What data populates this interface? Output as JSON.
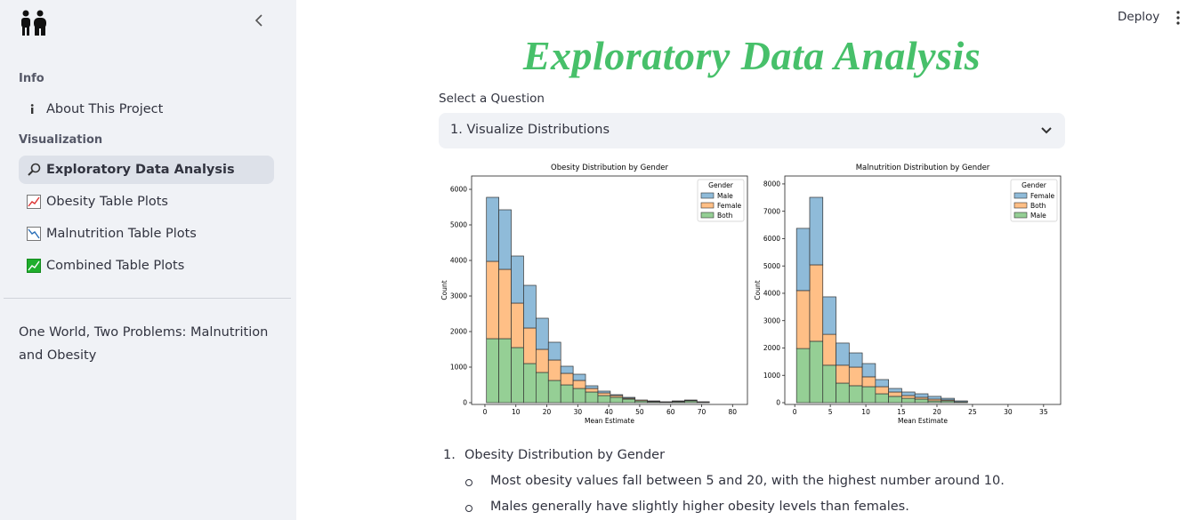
{
  "header": {
    "deploy": "Deploy"
  },
  "sidebar": {
    "info_heading": "Info",
    "about": "About This Project",
    "visualization_heading": "Visualization",
    "nav": [
      "Exploratory Data Analysis",
      "Obesity Table Plots",
      "Malnutrition Table Plots",
      "Combined Table Plots"
    ],
    "footer": "One World, Two Problems: Malnutrition and Obesity"
  },
  "main": {
    "title": "Exploratory Data Analysis",
    "select_label": "Select a Question",
    "select_value": "1. Visualize Distributions",
    "list": {
      "number": "1.",
      "heading": "Obesity Distribution by Gender",
      "bullets": [
        "Most obesity values fall between 5 and 20, with the highest number around 10.",
        "Males generally have slightly higher obesity levels than females."
      ]
    }
  },
  "chart_data": [
    {
      "type": "stacked-histogram",
      "title": "Obesity Distribution by Gender",
      "x_label": "Mean Estimate",
      "y_label": "Count",
      "legend_title": "Gender",
      "legend": "upper right",
      "bins": [
        0.5,
        4.5,
        8.5,
        12.5,
        16.5,
        20.5,
        24.5,
        28.5,
        32.5,
        36.5,
        40.5,
        44.5,
        48.5,
        52.5,
        56.5,
        60.5,
        64.5,
        68.5,
        72.5
      ],
      "series": [
        {
          "name": "Male",
          "color": "#8fbbd9",
          "values": [
            1800,
            1675,
            1325,
            1200,
            875,
            500,
            200,
            175,
            75,
            50,
            25,
            25,
            0,
            10,
            5,
            10,
            10,
            5
          ]
        },
        {
          "name": "Female",
          "color": "#ffbf86",
          "values": [
            2175,
            1950,
            1250,
            1000,
            650,
            575,
            325,
            225,
            100,
            75,
            50,
            25,
            25,
            15,
            10,
            15,
            15,
            10
          ]
        },
        {
          "name": "Both",
          "color": "#95cf95",
          "values": [
            1800,
            1800,
            1550,
            1100,
            850,
            625,
            500,
            400,
            300,
            200,
            150,
            100,
            50,
            25,
            10,
            25,
            50,
            10
          ]
        }
      ],
      "xlim": [
        -4.3,
        84.8
      ],
      "ylim": [
        -50,
        6375
      ],
      "xticks": [
        0,
        10,
        20,
        30,
        40,
        50,
        60,
        70,
        80
      ],
      "yticks": [
        0,
        1000,
        2000,
        3000,
        4000,
        5000,
        6000
      ]
    },
    {
      "type": "stacked-histogram",
      "title": "Malnutrition Distribution by Gender",
      "x_label": "Mean Estimate",
      "y_label": "Count",
      "legend_title": "Gender",
      "legend": "upper right",
      "bins": [
        0.25,
        2.1,
        3.95,
        5.8,
        7.65,
        9.5,
        11.35,
        13.2,
        15.05,
        16.9,
        18.75,
        20.6,
        22.45,
        24.3
      ],
      "series": [
        {
          "name": "Female",
          "color": "#8fbbd9",
          "values": [
            2275,
            2470,
            1370,
            810,
            520,
            485,
            260,
            130,
            130,
            130,
            100,
            60,
            35
          ]
        },
        {
          "name": "Both",
          "color": "#ffbf86",
          "values": [
            2120,
            2795,
            1130,
            655,
            680,
            360,
            260,
            160,
            100,
            65,
            65,
            35,
            0
          ]
        },
        {
          "name": "Male",
          "color": "#95cf95",
          "values": [
            1980,
            2245,
            1370,
            715,
            620,
            585,
            325,
            230,
            160,
            130,
            65,
            65,
            30
          ]
        }
      ],
      "xlim": [
        -1.4,
        37.4
      ],
      "ylim": [
        -65,
        8290
      ],
      "xticks": [
        0,
        5,
        10,
        15,
        20,
        25,
        30,
        35
      ],
      "yticks": [
        0,
        1000,
        2000,
        3000,
        4000,
        5000,
        6000,
        7000,
        8000
      ]
    }
  ]
}
